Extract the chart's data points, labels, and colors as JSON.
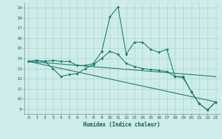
{
  "xlabel": "Humidex (Indice chaleur)",
  "background_color": "#ceecea",
  "grid_color": "#aed8d4",
  "line_color": "#1a7a6e",
  "xlim": [
    -0.5,
    23.5
  ],
  "ylim": [
    8.5,
    19.5
  ],
  "xticks": [
    0,
    1,
    2,
    3,
    4,
    5,
    6,
    7,
    8,
    9,
    10,
    11,
    12,
    13,
    14,
    15,
    16,
    17,
    18,
    19,
    20,
    21,
    22,
    23
  ],
  "yticks": [
    9,
    10,
    11,
    12,
    13,
    14,
    15,
    16,
    17,
    18,
    19
  ],
  "line1_x": [
    0,
    1,
    2,
    3,
    4,
    5,
    6,
    7,
    8,
    9,
    10,
    11,
    12,
    13,
    14,
    15,
    16,
    17,
    18,
    19,
    20,
    21,
    22,
    23
  ],
  "line1_y": [
    13.7,
    13.8,
    13.7,
    13.8,
    13.7,
    13.7,
    13.3,
    13.3,
    13.5,
    14.7,
    18.1,
    19.1,
    14.4,
    15.6,
    15.6,
    14.9,
    14.6,
    14.9,
    12.2,
    12.2,
    10.7,
    9.5,
    8.9,
    9.7
  ],
  "line2_x": [
    0,
    1,
    2,
    3,
    4,
    5,
    6,
    7,
    8,
    9,
    10,
    11,
    12,
    13,
    14,
    15,
    16,
    17,
    18,
    19,
    20,
    21,
    22,
    23
  ],
  "line2_y": [
    13.7,
    13.8,
    13.7,
    13.0,
    12.2,
    12.4,
    12.5,
    13.0,
    13.4,
    14.0,
    14.7,
    14.4,
    13.5,
    13.2,
    13.0,
    12.9,
    12.8,
    12.7,
    12.2,
    12.1,
    10.7,
    9.5,
    8.9,
    9.7
  ],
  "line3_x": [
    0,
    23
  ],
  "line3_y": [
    13.7,
    9.7
  ],
  "line4_x": [
    0,
    23
  ],
  "line4_y": [
    13.7,
    12.2
  ]
}
